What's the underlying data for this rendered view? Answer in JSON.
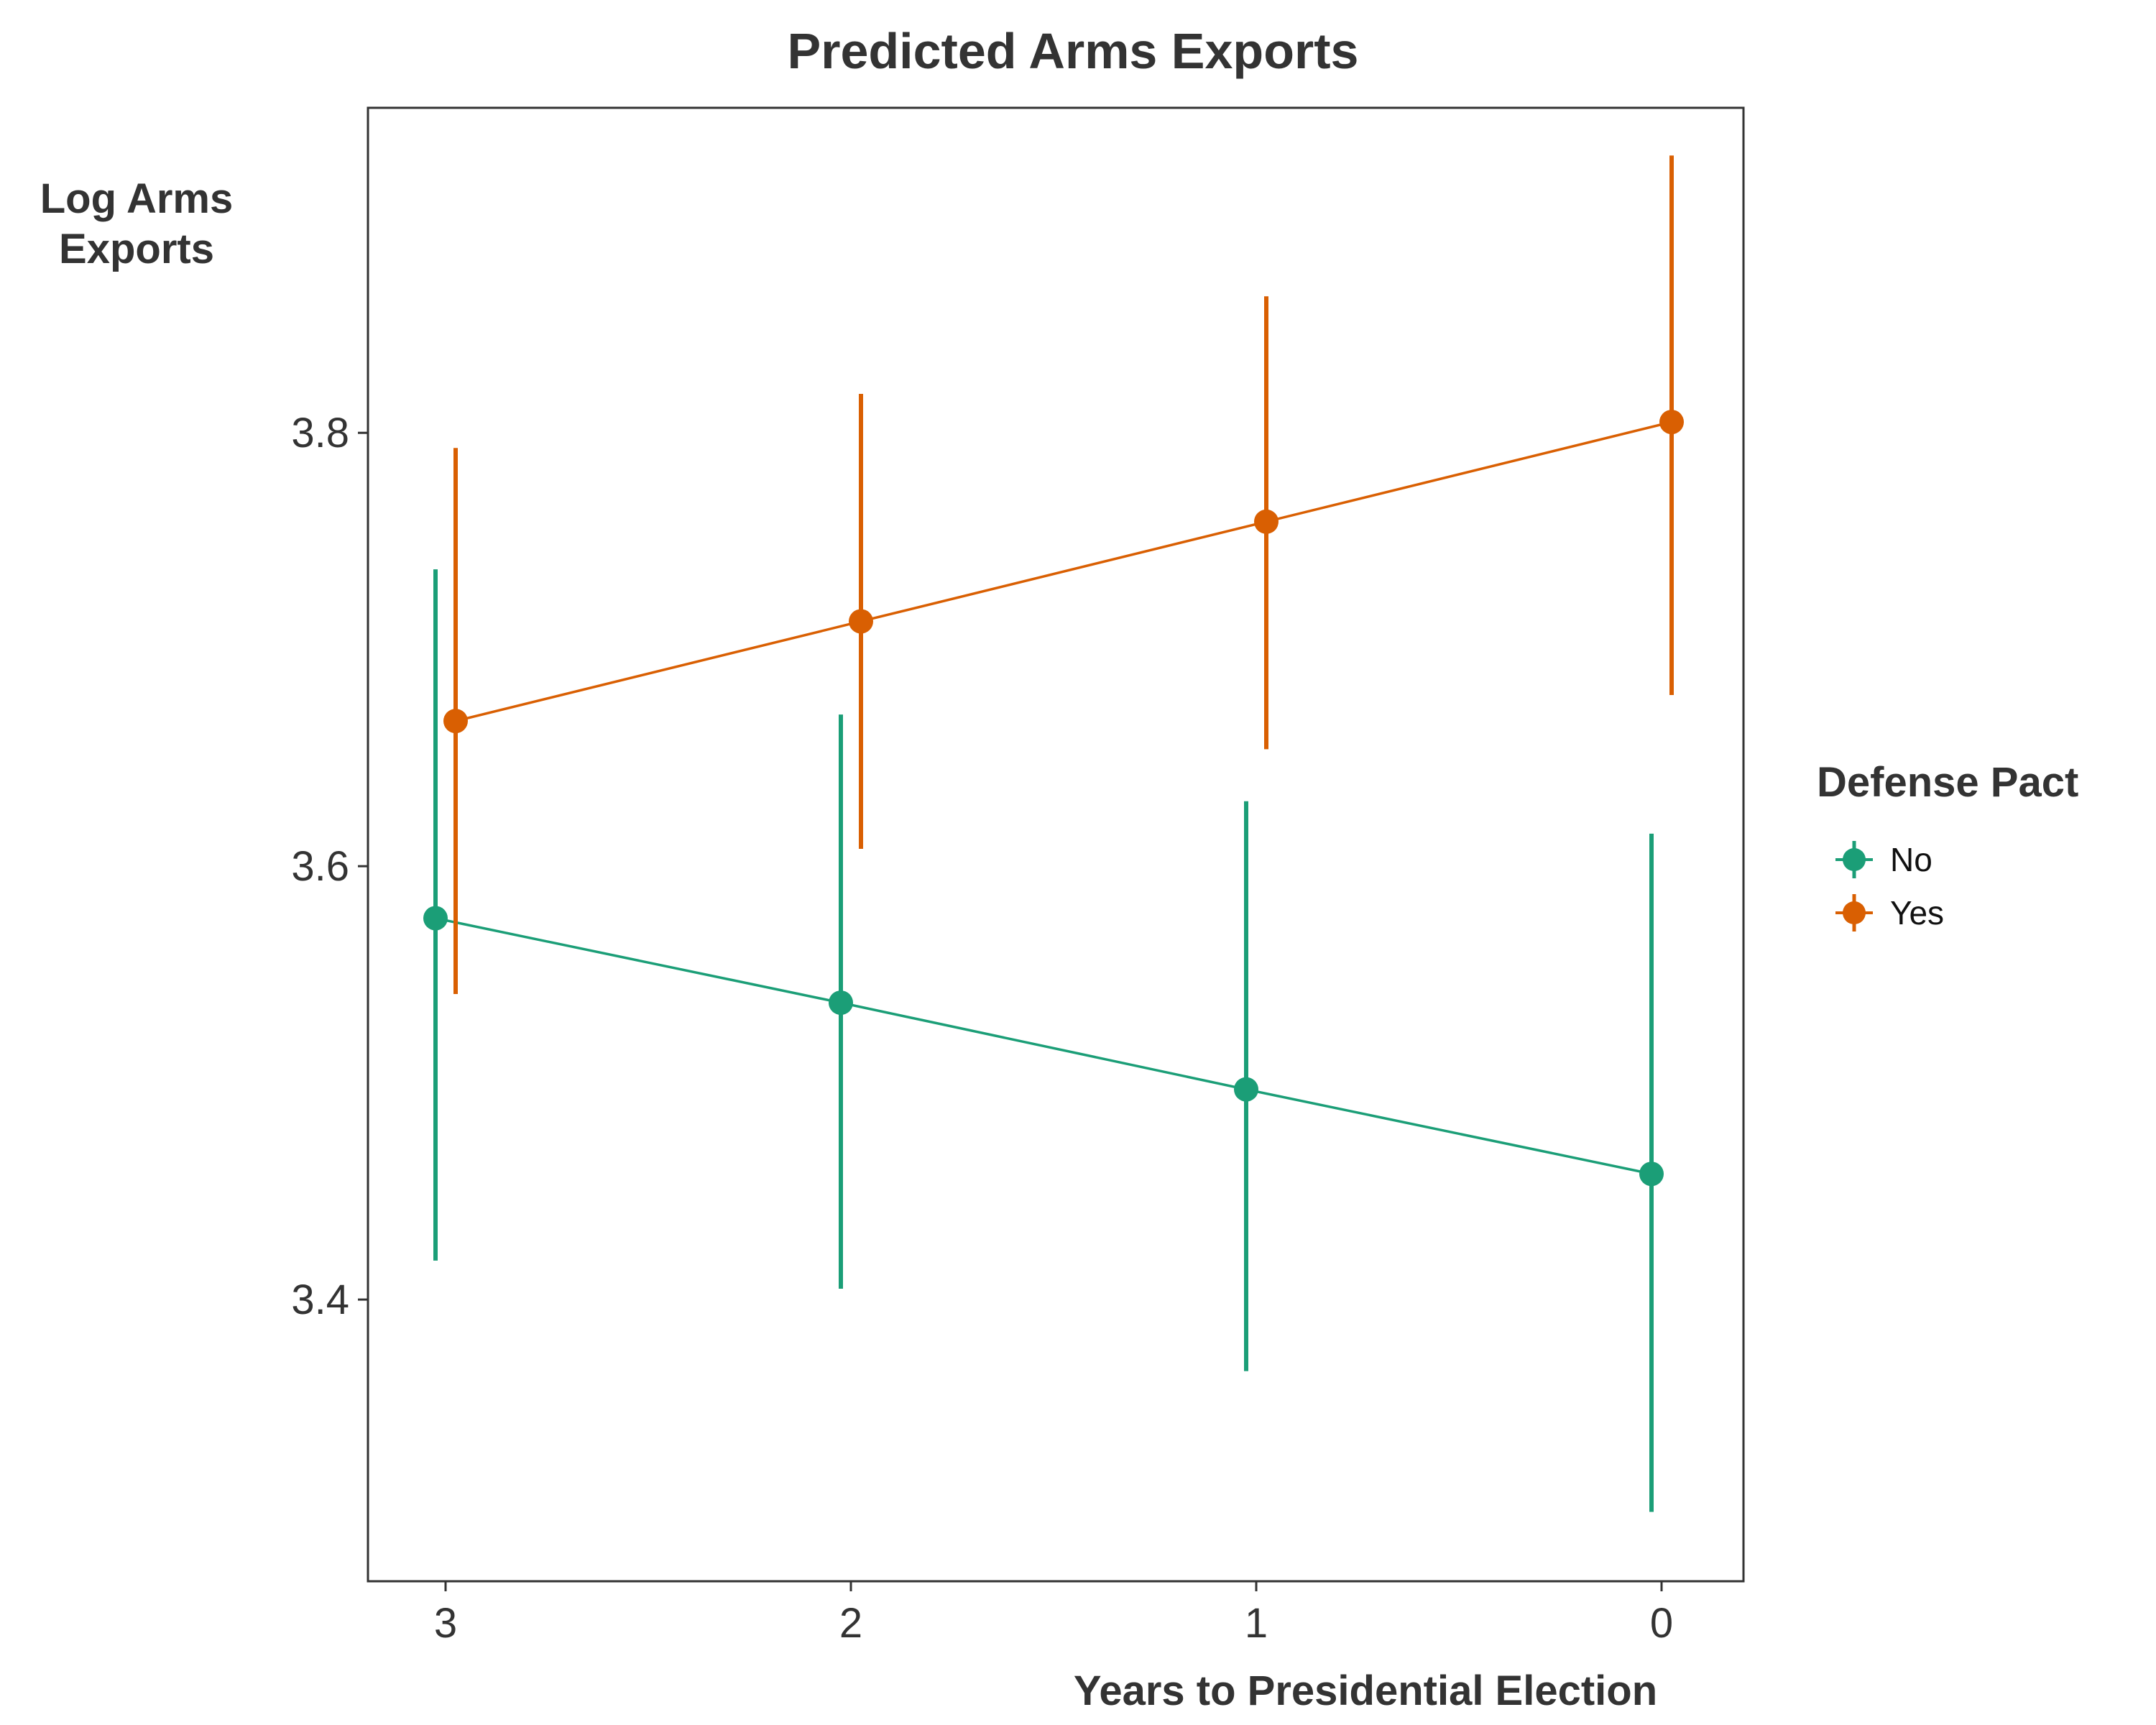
{
  "chart_data": {
    "type": "line",
    "title": "Predicted Arms Exports",
    "xlabel": "Years to Presidential Election",
    "ylabel_lines": [
      "Log Arms",
      "Exports"
    ],
    "categories": [
      "3",
      "2",
      "1",
      "0"
    ],
    "ylim": [
      3.27,
      3.95
    ],
    "yticks": [
      3.4,
      3.6,
      3.8
    ],
    "ytick_labels": [
      "3.4",
      "3.6",
      "3.8"
    ],
    "grid": false,
    "legend": {
      "title": "Defense Pact",
      "position": "right"
    },
    "series": [
      {
        "name": "No",
        "color": "#1b9e77",
        "values": [
          3.576,
          3.537,
          3.497,
          3.458
        ],
        "lower": [
          3.418,
          3.405,
          3.367,
          3.302
        ],
        "upper": [
          3.737,
          3.67,
          3.63,
          3.615
        ]
      },
      {
        "name": "Yes",
        "color": "#d95f02",
        "values": [
          3.667,
          3.713,
          3.759,
          3.805
        ],
        "lower": [
          3.541,
          3.608,
          3.654,
          3.679
        ],
        "upper": [
          3.793,
          3.818,
          3.863,
          3.928
        ]
      }
    ]
  }
}
